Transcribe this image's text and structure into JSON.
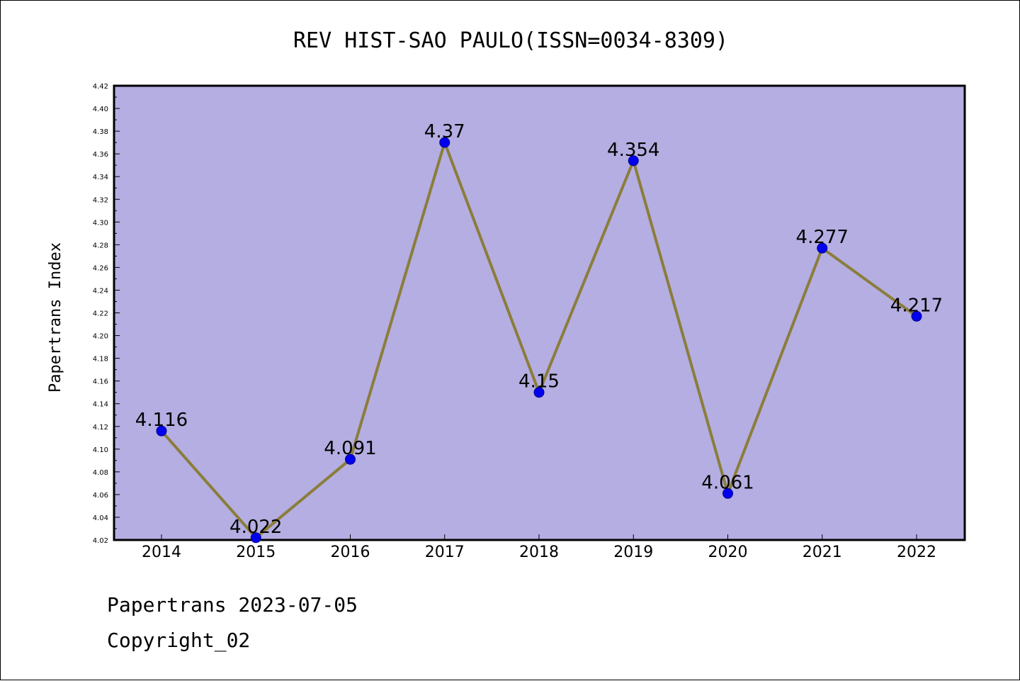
{
  "colors": {
    "plot_background": "#b4aee2",
    "line": "#8b7d3a",
    "marker": "#0000ee",
    "marker_edge": "#00008b"
  },
  "chart_data": {
    "type": "line",
    "title": "REV HIST-SAO PAULO(ISSN=0034-8309)",
    "xlabel": "",
    "ylabel": "Papertrans Index",
    "categories": [
      "2014",
      "2015",
      "2016",
      "2017",
      "2018",
      "2019",
      "2020",
      "2021",
      "2022"
    ],
    "series": [
      {
        "values": [
          4.116,
          4.022,
          4.091,
          4.37,
          4.15,
          4.354,
          4.061,
          4.277,
          4.217
        ],
        "labels": [
          "4.116",
          "4.022",
          "4.091",
          "4.37",
          "4.15",
          "4.354",
          "4.061",
          "4.277",
          "4.217"
        ]
      }
    ],
    "ylim": [
      4.02,
      4.42
    ],
    "yticks": [
      "4.02",
      "4.04",
      "4.06",
      "4.08",
      "4.10",
      "4.12",
      "4.14",
      "4.16",
      "4.18",
      "4.20",
      "4.22",
      "4.24",
      "4.26",
      "4.28",
      "4.30",
      "4.32",
      "4.34",
      "4.36",
      "4.38",
      "4.40",
      "4.42"
    ],
    "grid": false,
    "legend": "none"
  },
  "footer": {
    "line1": "Papertrans 2023-07-05",
    "line2": "Copyright_02"
  }
}
